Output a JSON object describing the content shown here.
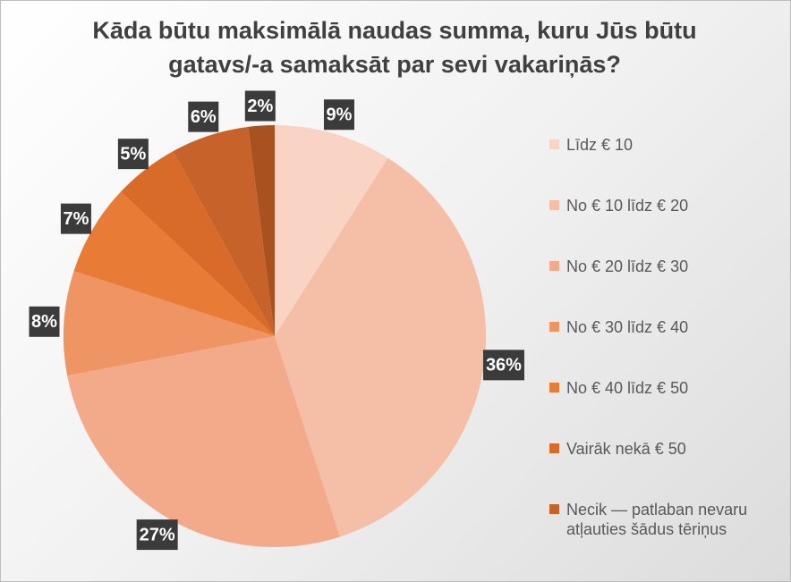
{
  "chart_data": {
    "type": "pie",
    "title": "Kāda būtu maksimālā naudas summa, kuru Jūs būtu gatavs/-a samaksāt par sevi vakariņās?",
    "categories": [
      "Līdz € 10",
      "No € 10 līdz € 20",
      "No € 20 līdz € 30",
      "No € 30 līdz € 40",
      "No € 40 līdz € 50",
      "Vairāk nekā € 50",
      "Necik — patlaban nevaru atļauties šādus tēriņus",
      null
    ],
    "values": [
      9,
      36,
      27,
      8,
      7,
      5,
      6,
      2
    ],
    "value_labels": [
      "9%",
      "36%",
      "27%",
      "8%",
      "7%",
      "5%",
      "6%",
      "2%"
    ],
    "colors": [
      "#f9d3c3",
      "#f5bea7",
      "#f2aa8b",
      "#ef9463",
      "#e87b35",
      "#d86b2a",
      "#c7632a",
      "#a9521f"
    ],
    "legend": "right"
  }
}
